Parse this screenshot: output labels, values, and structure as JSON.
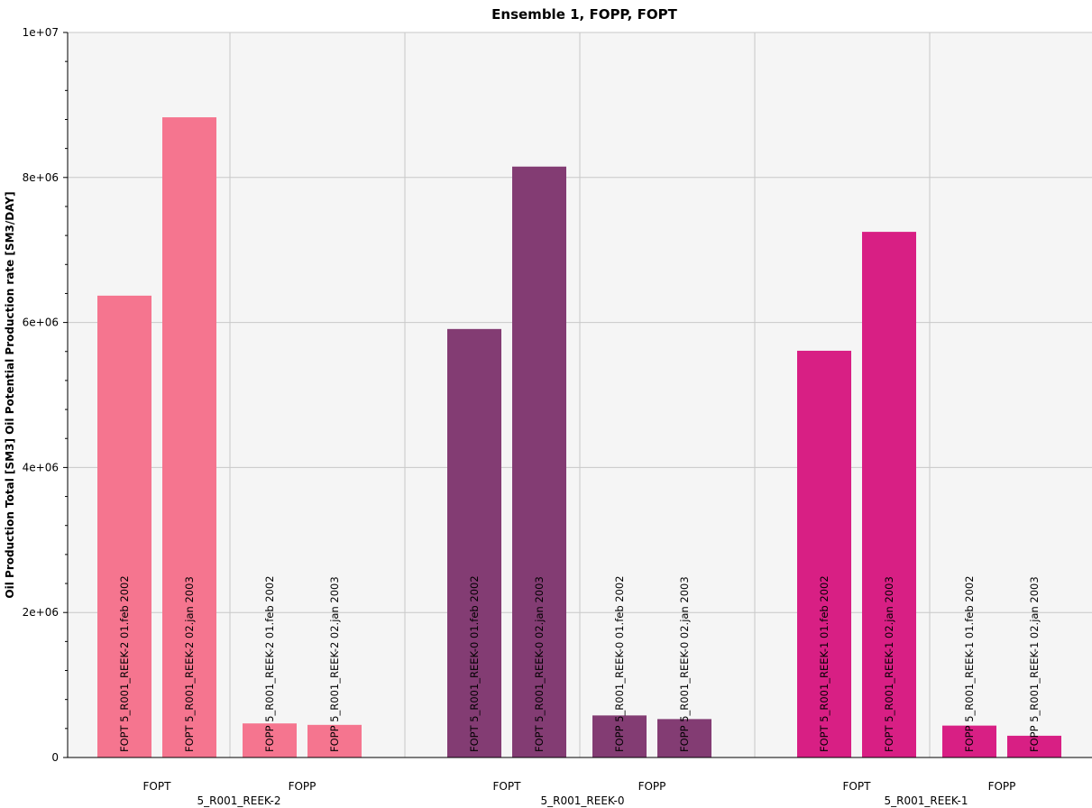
{
  "chart_data": {
    "type": "bar",
    "title": "Ensemble 1, FOPP, FOPT",
    "ylabel": "Oil Production Total [SM3] Oil Potential Production rate [SM3/DAY]",
    "ylim": [
      0,
      10000000
    ],
    "y_ticks": [
      "0",
      "2e+06",
      "4e+06",
      "6e+06",
      "8e+06",
      "1e+07"
    ],
    "y_tick_values": [
      0,
      2000000,
      4000000,
      6000000,
      8000000,
      10000000
    ],
    "grid": true,
    "groups": [
      {
        "label": "5_R001_REEK-2",
        "color": "#F5758F",
        "subgroups": [
          {
            "label": "FOPT",
            "bars": [
              {
                "label": "FOPT 5_R001_REEK-2 01.feb 2002",
                "value": 6370000
              },
              {
                "label": "FOPT 5_R001_REEK-2 02.jan 2003",
                "value": 8830000
              }
            ]
          },
          {
            "label": "FOPP",
            "bars": [
              {
                "label": "FOPP 5_R001_REEK-2 01.feb 2002",
                "value": 470000
              },
              {
                "label": "FOPP 5_R001_REEK-2 02.jan 2003",
                "value": 450000
              }
            ]
          }
        ]
      },
      {
        "label": "5_R001_REEK-0",
        "color": "#833C73",
        "subgroups": [
          {
            "label": "FOPT",
            "bars": [
              {
                "label": "FOPT 5_R001_REEK-0 01.feb 2002",
                "value": 5910000
              },
              {
                "label": "FOPT 5_R001_REEK-0 02.jan 2003",
                "value": 8150000
              }
            ]
          },
          {
            "label": "FOPP",
            "bars": [
              {
                "label": "FOPP 5_R001_REEK-0 01.feb 2002",
                "value": 580000
              },
              {
                "label": "FOPP 5_R001_REEK-0 02.jan 2003",
                "value": 530000
              }
            ]
          }
        ]
      },
      {
        "label": "5_R001_REEK-1",
        "color": "#D81F84",
        "subgroups": [
          {
            "label": "FOPT",
            "bars": [
              {
                "label": "FOPT 5_R001_REEK-1 01.feb 2002",
                "value": 5610000
              },
              {
                "label": "FOPT 5_R001_REEK-1 02.jan 2003",
                "value": 7250000
              }
            ]
          },
          {
            "label": "FOPP",
            "bars": [
              {
                "label": "FOPP 5_R001_REEK-1 01.feb 2002",
                "value": 440000
              },
              {
                "label": "FOPP 5_R001_REEK-1 02.jan 2003",
                "value": 300000
              }
            ]
          }
        ]
      }
    ]
  }
}
